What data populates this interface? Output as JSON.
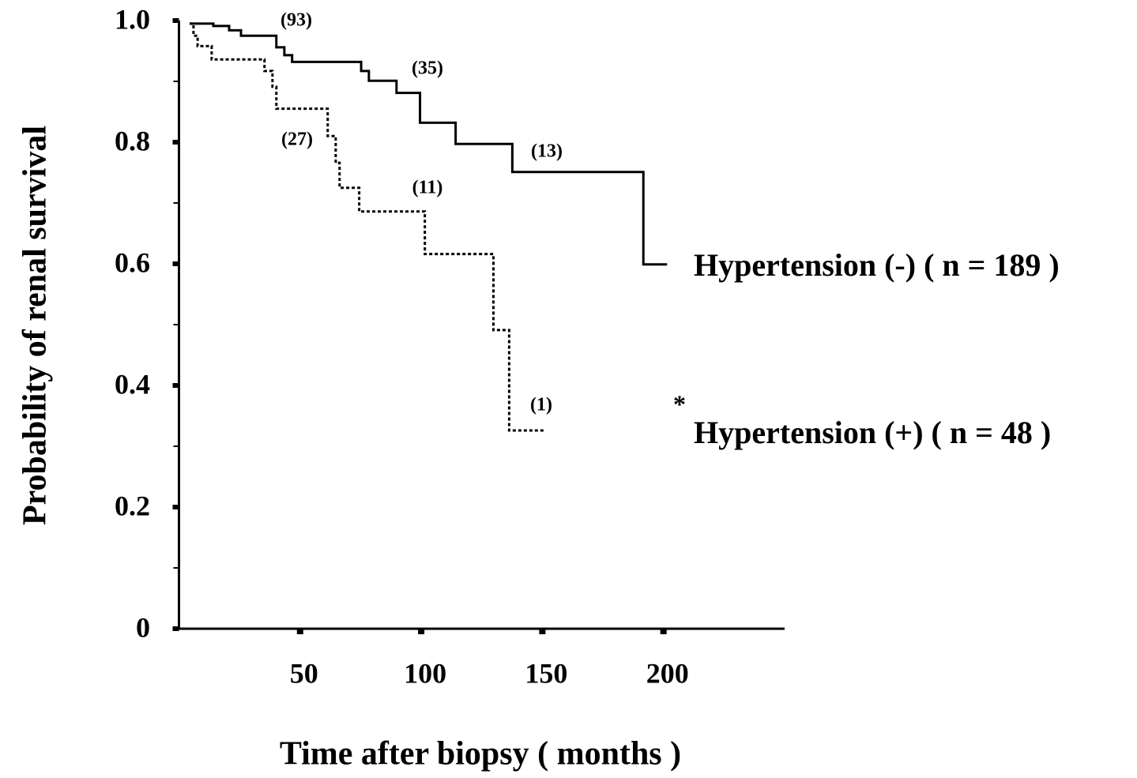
{
  "chart_data": {
    "type": "step",
    "x_label": "Time after biopsy ( months )",
    "y_label": "Probability of renal survival",
    "xlim": [
      0,
      250
    ],
    "ylim": [
      0,
      1
    ],
    "xticks": [
      50,
      100,
      150,
      200
    ],
    "yticks": [
      0,
      0.2,
      0.4,
      0.6,
      0.8,
      {
        "value": 1,
        "label": "1.0"
      }
    ],
    "yminorticks": [
      0.1,
      0.3,
      0.5,
      0.7,
      0.9
    ],
    "series": [
      {
        "name": "Hypertension (-) ( n = 189 )",
        "color": "#000000",
        "line_style": "solid",
        "x": [
          4.4,
          14.2,
          20.7,
          25.6,
          40.2,
          43.5,
          46.7,
          75.2,
          78.4,
          89.8,
          99.5,
          114.2,
          137.6,
          191.7,
          201.5
        ],
        "values": [
          0.995,
          0.991,
          0.984,
          0.975,
          0.956,
          0.943,
          0.932,
          0.917,
          0.901,
          0.881,
          0.832,
          0.797,
          0.751,
          0.599,
          0.599
        ]
      },
      {
        "name": "Hypertension (+)  ( n = 48 )",
        "color": "#000000",
        "line_style": "dotted",
        "x": [
          4.4,
          6.0,
          7.7,
          13.5,
          35.3,
          38.6,
          40.2,
          61.4,
          64.7,
          66.3,
          74.4,
          101.5,
          129.8,
          136.3,
          151
        ],
        "values": [
          0.995,
          0.975,
          0.958,
          0.936,
          0.917,
          0.891,
          0.855,
          0.81,
          0.766,
          0.725,
          0.686,
          0.616,
          0.491,
          0.326,
          0.326
        ]
      }
    ],
    "annotations": [
      "(93)",
      "(35)",
      "(13)",
      "(27)",
      "(11)",
      "(1)",
      "*"
    ]
  }
}
